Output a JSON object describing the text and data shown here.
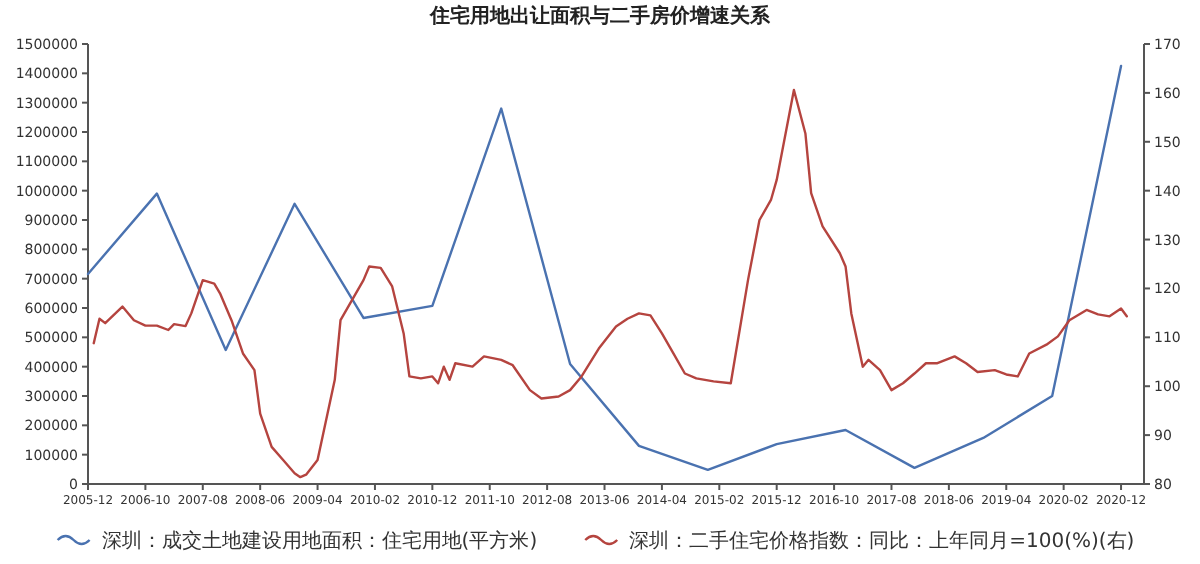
{
  "chart_data": {
    "type": "line",
    "title": "住宅用地出让面积与二手房价增速关系",
    "legend": "bottom",
    "grid": false,
    "xlim": [
      "2005-12",
      "2021-04"
    ],
    "xticks": [
      "2005-12",
      "2006-10",
      "2007-08",
      "2008-06",
      "2009-04",
      "2010-02",
      "2010-12",
      "2011-10",
      "2012-08",
      "2013-06",
      "2014-04",
      "2015-02",
      "2015-12",
      "2016-10",
      "2017-08",
      "2018-06",
      "2019-04",
      "2020-02",
      "2020-12"
    ],
    "ylim": [
      0,
      1500000
    ],
    "yticks": [
      0,
      100000,
      200000,
      300000,
      400000,
      500000,
      600000,
      700000,
      800000,
      900000,
      1000000,
      1100000,
      1200000,
      1300000,
      1400000,
      1500000
    ],
    "y2lim": [
      80,
      170
    ],
    "y2ticks": [
      80,
      90,
      100,
      110,
      120,
      130,
      140,
      150,
      160,
      170
    ],
    "series": [
      {
        "name": "深圳：成交土地建设用地面积：住宅用地(平方米)",
        "color": "#4a72b0",
        "x": [
          "2005-12",
          "2006-12",
          "2007-12",
          "2008-12",
          "2009-12",
          "2010-12",
          "2011-12",
          "2012-12",
          "2013-12",
          "2014-12",
          "2015-12",
          "2016-12",
          "2017-12",
          "2018-12",
          "2019-12",
          "2020-12"
        ],
        "values": [
          716000,
          990000,
          457000,
          955000,
          566000,
          607000,
          1280000,
          409000,
          130000,
          48000,
          136000,
          184000,
          55000,
          157000,
          300000,
          1425000
        ]
      },
      {
        "name": "深圳：二手住宅价格指数：同比：上年同月=100(%)(右)",
        "color": "#b5443f",
        "axis": "y2",
        "x": [
          "2006-01",
          "2006-02",
          "2006-03",
          "2006-06",
          "2006-08",
          "2006-10",
          "2006-12",
          "2007-02",
          "2007-03",
          "2007-05",
          "2007-06",
          "2007-08",
          "2007-10",
          "2007-11",
          "2008-01",
          "2008-03",
          "2008-05",
          "2008-06",
          "2008-08",
          "2008-10",
          "2008-12",
          "2009-01",
          "2009-02",
          "2009-04",
          "2009-05",
          "2009-07",
          "2009-08",
          "2009-10",
          "2009-12",
          "2010-01",
          "2010-03",
          "2010-05",
          "2010-07",
          "2010-08",
          "2010-10",
          "2010-12",
          "2011-01",
          "2011-02",
          "2011-03",
          "2011-04",
          "2011-07",
          "2011-09",
          "2011-12",
          "2012-02",
          "2012-05",
          "2012-07",
          "2012-10",
          "2012-12",
          "2013-02",
          "2013-05",
          "2013-08",
          "2013-10",
          "2013-12",
          "2014-02",
          "2014-04",
          "2014-06",
          "2014-08",
          "2014-10",
          "2015-01",
          "2015-04",
          "2015-07",
          "2015-09",
          "2015-11",
          "2015-12",
          "2016-03",
          "2016-05",
          "2016-06",
          "2016-08",
          "2016-11",
          "2016-12",
          "2017-01",
          "2017-03",
          "2017-04",
          "2017-06",
          "2017-08",
          "2017-10",
          "2017-12",
          "2018-02",
          "2018-04",
          "2018-07",
          "2018-09",
          "2018-11",
          "2019-02",
          "2019-04",
          "2019-06",
          "2019-08",
          "2019-11",
          "2020-01",
          "2020-03",
          "2020-06",
          "2020-08",
          "2020-10",
          "2020-12",
          "2021-01"
        ],
        "values": [
          108.8,
          113.8,
          112.9,
          116.3,
          113.5,
          112.4,
          112.4,
          111.5,
          112.7,
          112.3,
          114.9,
          121.7,
          121.0,
          119.0,
          113.5,
          106.7,
          103.3,
          94.4,
          87.6,
          84.9,
          82.2,
          81.4,
          81.9,
          84.9,
          90.4,
          101.3,
          113.5,
          117.6,
          121.7,
          124.5,
          124.2,
          120.4,
          110.8,
          102.0,
          101.6,
          102.0,
          100.6,
          104.0,
          101.3,
          104.7,
          104.0,
          106.1,
          105.4,
          104.3,
          99.2,
          97.5,
          97.9,
          99.2,
          102.0,
          107.7,
          112.2,
          113.8,
          114.9,
          114.5,
          110.8,
          106.7,
          102.6,
          101.6,
          101.0,
          100.6,
          121.7,
          134.0,
          138.1,
          142.2,
          160.6,
          151.7,
          139.5,
          132.7,
          127.2,
          124.5,
          114.9,
          104.0,
          105.4,
          103.3,
          99.2,
          100.6,
          102.6,
          104.7,
          104.7,
          106.1,
          104.7,
          102.9,
          103.3,
          102.4,
          102.0,
          106.7,
          108.5,
          110.2,
          113.5,
          115.6,
          114.7,
          114.3,
          115.9,
          114.3
        ]
      }
    ]
  }
}
